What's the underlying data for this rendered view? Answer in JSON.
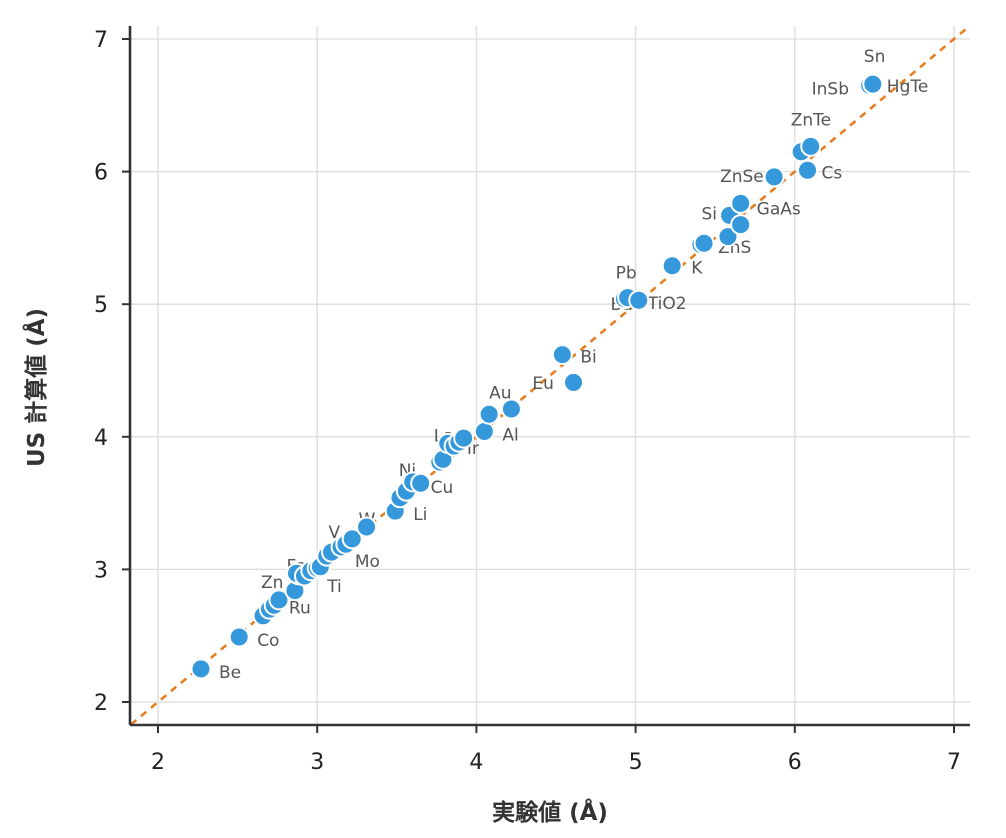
{
  "chart_data": {
    "type": "scatter",
    "xlabel": "実験値 (Å)",
    "ylabel": "US 計算値 (Å)",
    "xlim": [
      1.83,
      7.1
    ],
    "ylim": [
      1.83,
      7.1
    ],
    "x_ticks": [
      2,
      3,
      4,
      5,
      6,
      7
    ],
    "y_ticks": [
      2,
      3,
      4,
      5,
      6,
      7
    ],
    "grid": true,
    "reference_line": {
      "type": "y=x",
      "color": "#e67e22",
      "style": "dashed"
    },
    "point_color": "#3498db",
    "points": [
      {
        "label": "Be",
        "x": 2.27,
        "y": 2.25
      },
      {
        "label": "Co",
        "x": 2.51,
        "y": 2.49
      },
      {
        "label": "",
        "x": 2.66,
        "y": 2.65
      },
      {
        "label": "",
        "x": 2.7,
        "y": 2.7
      },
      {
        "label": "",
        "x": 2.73,
        "y": 2.73
      },
      {
        "label": "Zn",
        "x": 2.76,
        "y": 2.77
      },
      {
        "label": "Ru",
        "x": 2.86,
        "y": 2.84
      },
      {
        "label": "",
        "x": 2.88,
        "y": 2.96
      },
      {
        "label": "Fe",
        "x": 2.87,
        "y": 2.97
      },
      {
        "label": "",
        "x": 2.92,
        "y": 2.95
      },
      {
        "label": "",
        "x": 2.96,
        "y": 2.99
      },
      {
        "label": "Ti",
        "x": 3.0,
        "y": 3.01
      },
      {
        "label": "",
        "x": 3.02,
        "y": 3.02
      },
      {
        "label": "",
        "x": 3.06,
        "y": 3.1
      },
      {
        "label": "V",
        "x": 3.09,
        "y": 3.13
      },
      {
        "label": "",
        "x": 3.15,
        "y": 3.17
      },
      {
        "label": "Mo",
        "x": 3.18,
        "y": 3.19
      },
      {
        "label": "",
        "x": 3.22,
        "y": 3.23
      },
      {
        "label": "W",
        "x": 3.31,
        "y": 3.32
      },
      {
        "label": "Li",
        "x": 3.49,
        "y": 3.44
      },
      {
        "label": "",
        "x": 3.52,
        "y": 3.54
      },
      {
        "label": "",
        "x": 3.56,
        "y": 3.59
      },
      {
        "label": "Ni",
        "x": 3.6,
        "y": 3.66
      },
      {
        "label": "Cu",
        "x": 3.65,
        "y": 3.65
      },
      {
        "label": "",
        "x": 3.77,
        "y": 3.81
      },
      {
        "label": "",
        "x": 3.79,
        "y": 3.83
      },
      {
        "label": "La",
        "x": 3.82,
        "y": 3.95
      },
      {
        "label": "",
        "x": 3.86,
        "y": 3.93
      },
      {
        "label": "Ir",
        "x": 3.89,
        "y": 3.96
      },
      {
        "label": "",
        "x": 3.92,
        "y": 3.99
      },
      {
        "label": "Al",
        "x": 4.05,
        "y": 4.04
      },
      {
        "label": "Au",
        "x": 4.08,
        "y": 4.17
      },
      {
        "label": "Eu",
        "x": 4.22,
        "y": 4.21
      },
      {
        "label": "Bi",
        "x": 4.54,
        "y": 4.62
      },
      {
        "label": "",
        "x": 4.61,
        "y": 4.41
      },
      {
        "label": "Ba",
        "x": 4.93,
        "y": 5.04
      },
      {
        "label": "Pb",
        "x": 4.95,
        "y": 5.05
      },
      {
        "label": "TiO2",
        "x": 5.02,
        "y": 5.03
      },
      {
        "label": "K",
        "x": 5.23,
        "y": 5.29
      },
      {
        "label": "",
        "x": 5.41,
        "y": 5.45
      },
      {
        "label": "ZnS",
        "x": 5.43,
        "y": 5.46
      },
      {
        "label": "",
        "x": 5.58,
        "y": 5.51
      },
      {
        "label": "Si",
        "x": 5.59,
        "y": 5.67
      },
      {
        "label": "",
        "x": 5.66,
        "y": 5.6
      },
      {
        "label": "GaAs",
        "x": 5.66,
        "y": 5.76
      },
      {
        "label": "ZnSe",
        "x": 5.87,
        "y": 5.96
      },
      {
        "label": "",
        "x": 6.04,
        "y": 6.15
      },
      {
        "label": "ZnTe",
        "x": 6.1,
        "y": 6.19
      },
      {
        "label": "Cs",
        "x": 6.08,
        "y": 6.01
      },
      {
        "label": "InSb",
        "x": 6.47,
        "y": 6.65
      },
      {
        "label": "Sn",
        "x": 6.49,
        "y": 6.66
      },
      {
        "label": "HgTe",
        "x": 6.49,
        "y": 6.66
      }
    ]
  }
}
